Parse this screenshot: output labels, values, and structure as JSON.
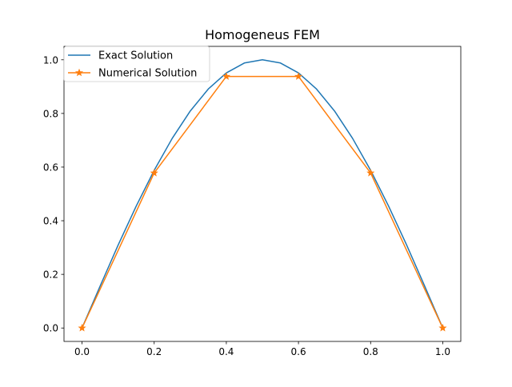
{
  "chart_data": {
    "type": "line",
    "title": "Homogeneus FEM",
    "xlabel": "",
    "ylabel": "",
    "xlim": [
      -0.05,
      1.05
    ],
    "ylim": [
      -0.05,
      1.05
    ],
    "xticks": [
      "0.0",
      "0.2",
      "0.4",
      "0.6",
      "0.8",
      "1.0"
    ],
    "yticks": [
      "0.0",
      "0.2",
      "0.4",
      "0.6",
      "0.8",
      "1.0"
    ],
    "grid": false,
    "legend_position": "top-left",
    "series": [
      {
        "name": "Exact Solution",
        "color": "#1f77b4",
        "marker": "none",
        "x": [
          0.0,
          0.05,
          0.1,
          0.15,
          0.2,
          0.25,
          0.3,
          0.35,
          0.4,
          0.45,
          0.5,
          0.55,
          0.6,
          0.65,
          0.7,
          0.75,
          0.8,
          0.85,
          0.9,
          0.95,
          1.0
        ],
        "y": [
          0.0,
          0.156,
          0.309,
          0.454,
          0.588,
          0.707,
          0.809,
          0.891,
          0.951,
          0.988,
          1.0,
          0.988,
          0.951,
          0.891,
          0.809,
          0.707,
          0.588,
          0.454,
          0.309,
          0.156,
          0.0
        ]
      },
      {
        "name": "Numerical Solution",
        "color": "#ff7f0e",
        "marker": "star",
        "x": [
          0.0,
          0.2,
          0.4,
          0.6,
          0.8,
          1.0
        ],
        "y": [
          0.0,
          0.578,
          0.938,
          0.938,
          0.578,
          0.0
        ]
      }
    ]
  }
}
